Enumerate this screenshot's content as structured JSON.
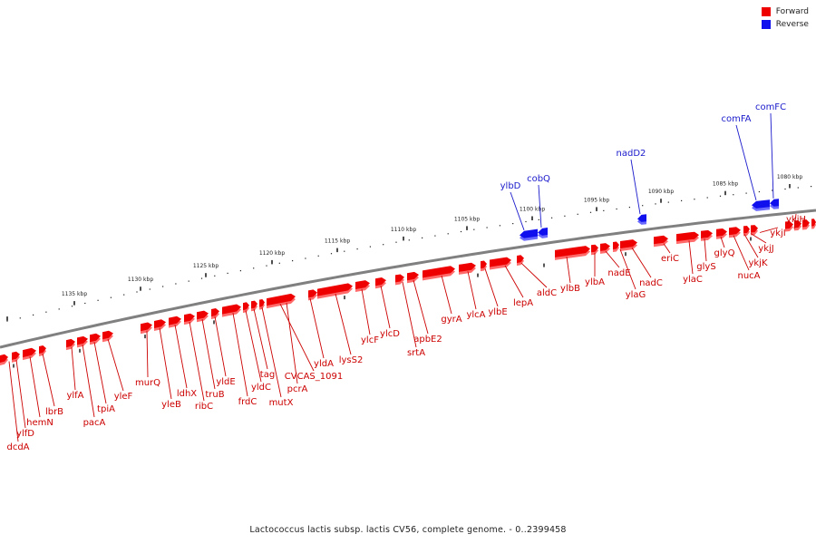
{
  "legend": {
    "forward_label": "Forward",
    "reverse_label": "Reverse"
  },
  "colors": {
    "forward": "#ee0000",
    "forward_light": "#ff6a6a",
    "forward_label": "#cc0000",
    "reverse": "#1010ee",
    "reverse_label": "#1a1acc",
    "backbone": "#808080",
    "ruler": "#222222"
  },
  "caption": "Lactococcus lactis subsp. lactis CV56, complete genome. - 0..2399458",
  "ruler_labels": [
    "1135 kbp",
    "1130 kbp",
    "1125 kbp",
    "1120 kbp",
    "1115 kbp",
    "1110 kbp",
    "1105 kbp",
    "1100 kbp",
    "1095 kbp",
    "1090 kbp",
    "1085 kbp",
    "1080 kbp"
  ],
  "forward_labels": [
    "dcdA",
    "ylfD",
    "hemN",
    "lbrB",
    "ylfA",
    "pacA",
    "tpiA",
    "yleF",
    "murQ",
    "yleB",
    "ldhX",
    "ribC",
    "truB",
    "yldE",
    "frdC",
    "yldC",
    "tag",
    "mutX",
    "CVCAS_1091",
    "pcrA",
    "yldA",
    "lysS2",
    "ylcF",
    "ylcD",
    "srtA",
    "apbE2",
    "gyrA",
    "ylcA",
    "ylbE",
    "lepA",
    "aldC",
    "ylbB",
    "ylbA",
    "nadE",
    "ylaG",
    "nadC",
    "eriC",
    "ylaC",
    "glyS",
    "glyQ",
    "nucA",
    "ykjK",
    "ykjJ",
    "ykjI",
    "ykjH"
  ],
  "reverse_labels": [
    "ylbD",
    "cobQ",
    "nadD2",
    "comFA",
    "comFC"
  ]
}
